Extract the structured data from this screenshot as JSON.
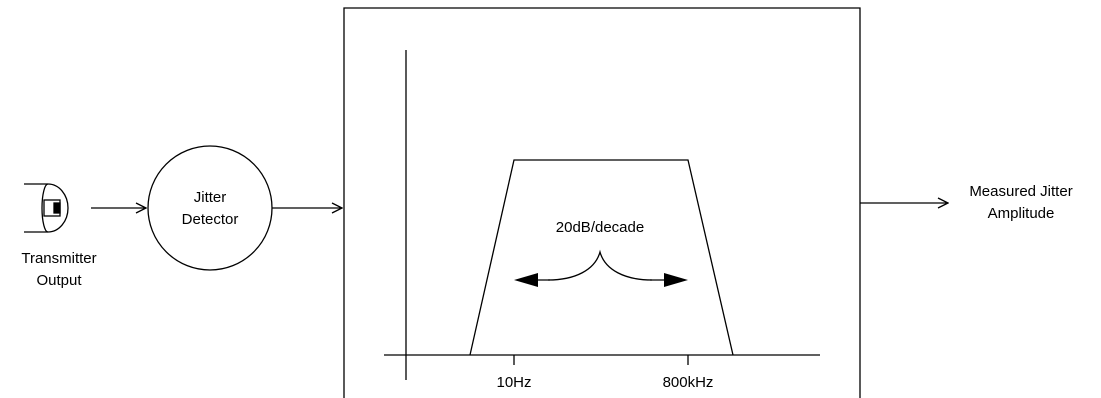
{
  "source": {
    "label_line1": "Transmitter",
    "label_line2": "Output",
    "icon": "coax-connector-icon"
  },
  "detector": {
    "label_line1": "Jitter",
    "label_line2": "Detector"
  },
  "filter": {
    "slope_label": "20dB/decade",
    "low_corner_label": "10Hz",
    "high_corner_label": "800kHz"
  },
  "output": {
    "label_line1": "Measured Jitter",
    "label_line2": "Amplitude"
  },
  "colors": {
    "stroke": "#000000",
    "background": "#ffffff"
  }
}
